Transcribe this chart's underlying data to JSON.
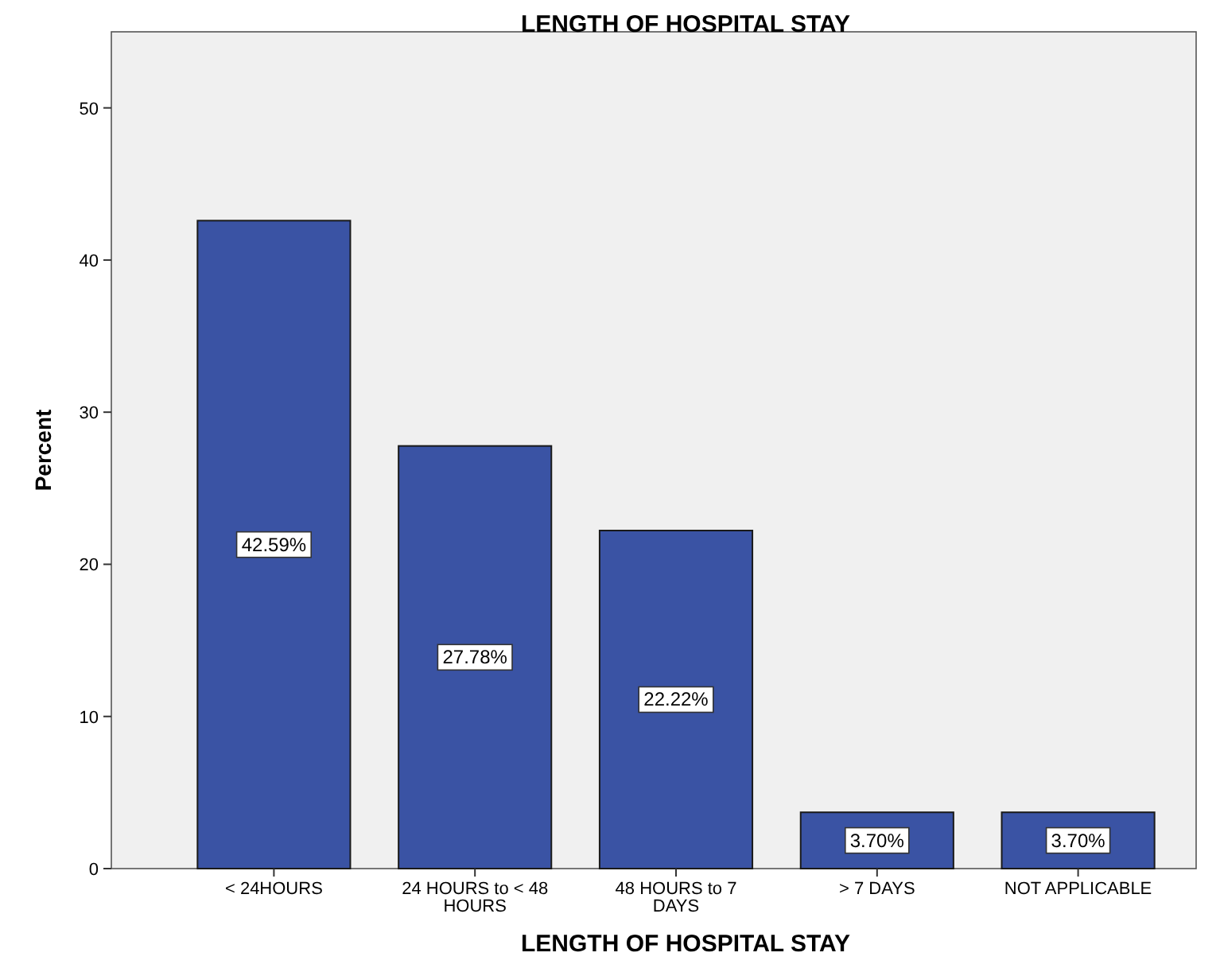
{
  "chart_data": {
    "type": "bar",
    "title": "LENGTH OF HOSPITAL STAY",
    "xlabel": "LENGTH OF HOSPITAL STAY",
    "ylabel": "Percent",
    "categories": [
      "< 24HOURS",
      "24 HOURS to < 48 HOURS",
      "48 HOURS to 7 DAYS",
      "> 7 DAYS",
      "NOT APPLICABLE"
    ],
    "values": [
      42.59,
      27.78,
      22.22,
      3.7,
      3.7
    ],
    "value_labels": [
      "42.59%",
      "27.78%",
      "22.22%",
      "3.70%",
      "3.70%"
    ],
    "color": "#3a53a4",
    "ylim": [
      0,
      55
    ],
    "yticks": [
      0,
      10,
      20,
      30,
      40,
      50
    ],
    "grid": false
  }
}
